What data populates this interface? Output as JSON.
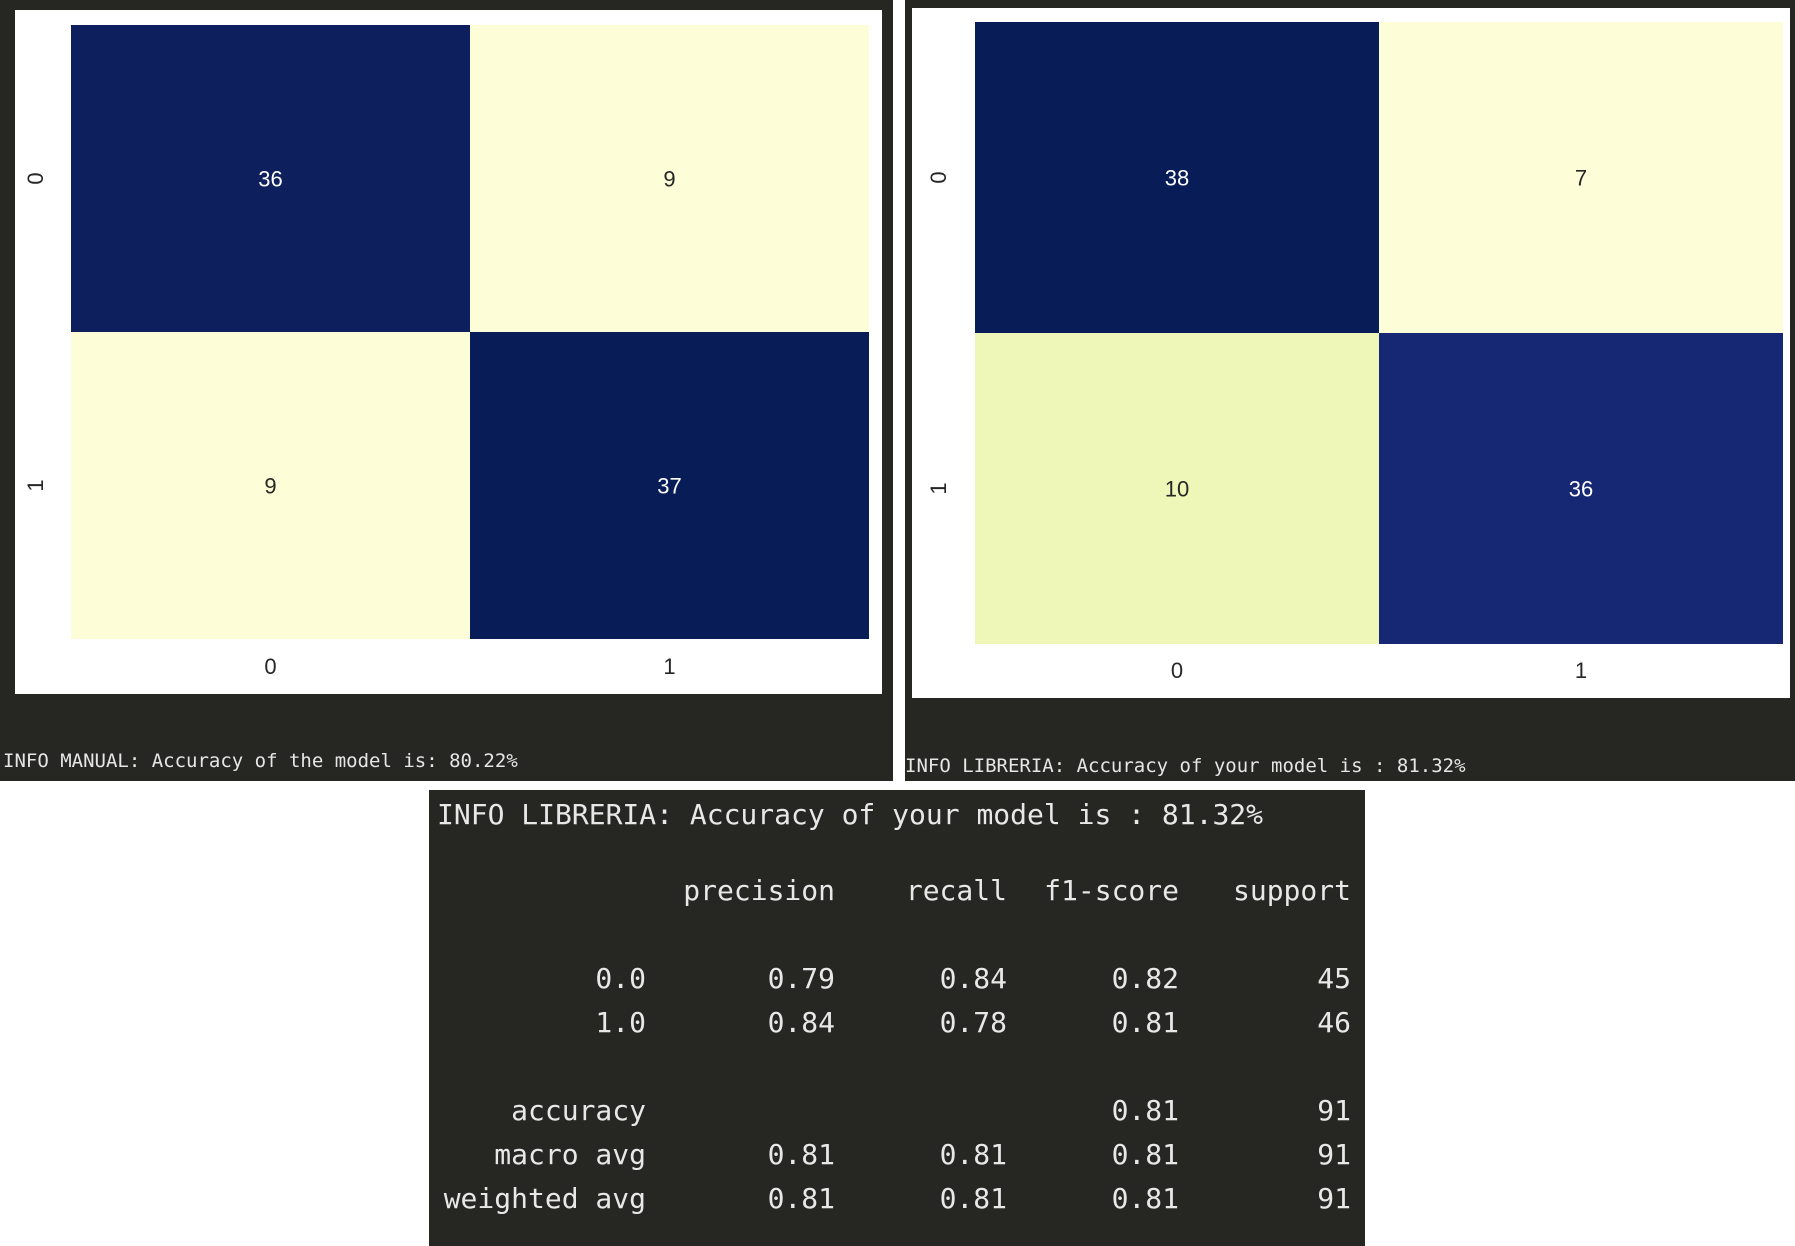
{
  "charts": [
    {
      "status": "INFO MANUAL: Accuracy of the model is: 80.22%"
    },
    {
      "status": "INFO LIBRERIA: Accuracy of your model is : 81.32%"
    }
  ],
  "chart_data": [
    {
      "type": "heatmap",
      "x_categories": [
        "0",
        "1"
      ],
      "y_categories": [
        "0",
        "1"
      ],
      "values": [
        [
          36,
          9
        ],
        [
          9,
          37
        ]
      ],
      "colors": [
        [
          "#0e1f5e",
          "#fdfed7"
        ],
        [
          "#fdfed7",
          "#081d58"
        ]
      ],
      "text_colors": [
        [
          "#ffffff",
          "#262626"
        ],
        [
          "#262626",
          "#ffffff"
        ]
      ],
      "colorscale": "YlGnBu"
    },
    {
      "type": "heatmap",
      "x_categories": [
        "0",
        "1"
      ],
      "y_categories": [
        "0",
        "1"
      ],
      "values": [
        [
          38,
          7
        ],
        [
          10,
          36
        ]
      ],
      "colors": [
        [
          "#081d58",
          "#fdfed7"
        ],
        [
          "#eef7b8",
          "#162874"
        ]
      ],
      "text_colors": [
        [
          "#ffffff",
          "#262626"
        ],
        [
          "#262626",
          "#ffffff"
        ]
      ],
      "colorscale": "YlGnBu"
    }
  ],
  "report": {
    "title": "INFO LIBRERIA: Accuracy of your model is : 81.32%",
    "headers": [
      "",
      "precision",
      "recall",
      "f1-score",
      "support"
    ],
    "rows": [
      {
        "label": "0.0",
        "precision": "0.79",
        "recall": "0.84",
        "f1": "0.82",
        "support": "45"
      },
      {
        "label": "1.0",
        "precision": "0.84",
        "recall": "0.78",
        "f1": "0.81",
        "support": "46"
      },
      {
        "label": "accuracy",
        "precision": "",
        "recall": "",
        "f1": "0.81",
        "support": "91"
      },
      {
        "label": "macro avg",
        "precision": "0.81",
        "recall": "0.81",
        "f1": "0.81",
        "support": "91"
      },
      {
        "label": "weighted avg",
        "precision": "0.81",
        "recall": "0.81",
        "f1": "0.81",
        "support": "91"
      }
    ]
  }
}
